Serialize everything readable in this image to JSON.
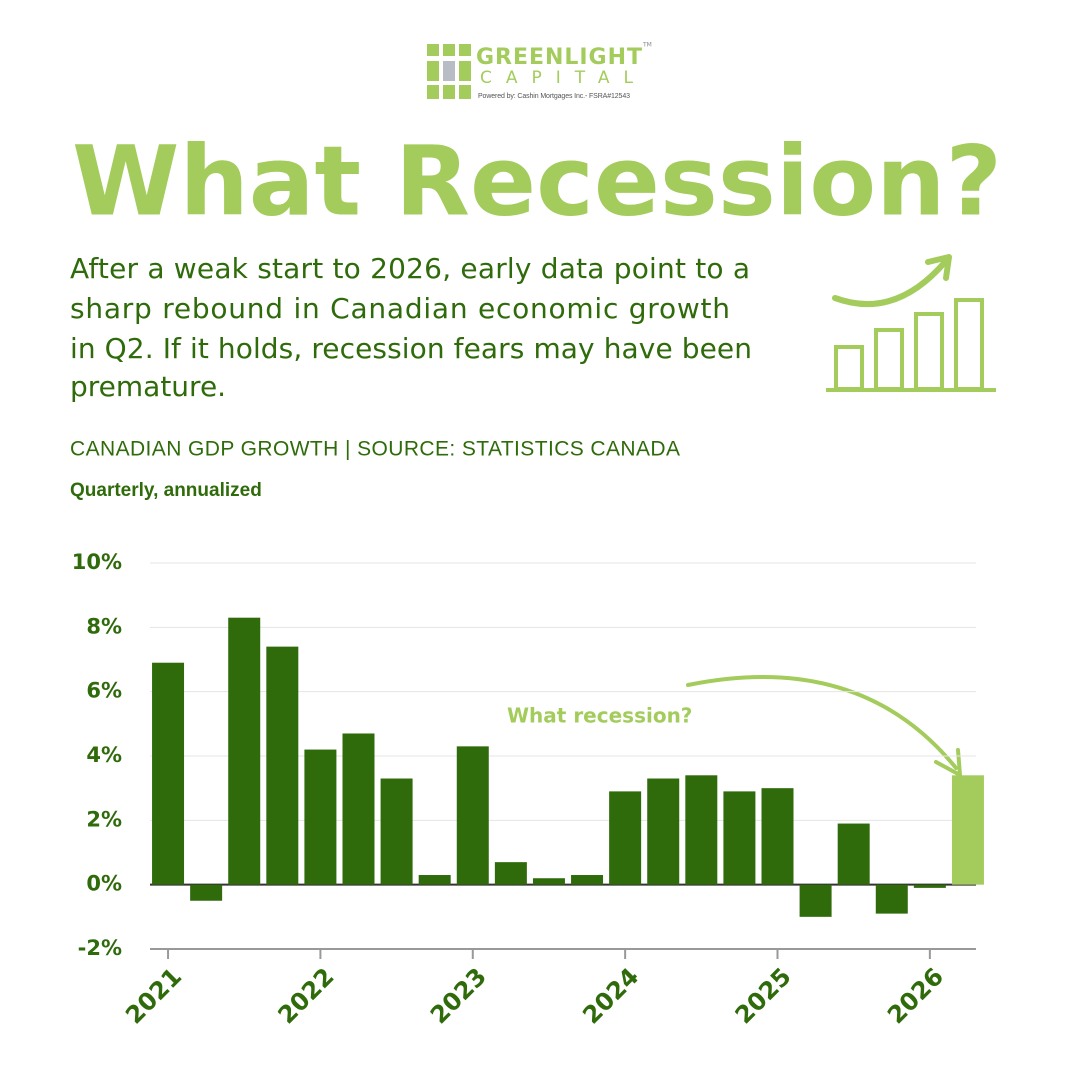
{
  "header": {
    "logo_name": "GREENLIGHT",
    "logo_sub": "CAPITAL",
    "trademark": "TM",
    "powered_by": "Powered by:  Cashin Mortgages Inc.- FSRA#12543"
  },
  "headline": "What Recession?",
  "intro_lines": [
    "After a weak start to 2026, early data point to a",
    "sharp rebound in Canadian economic growth",
    "in Q2. If it holds, recession fears may have been",
    "premature."
  ],
  "chart_data": {
    "type": "bar",
    "title": "CANADIAN GDP GROWTH | SOURCE: STATISTICS CANADA",
    "subtitle": "Quarterly, annualized",
    "annotation": "What recession?",
    "categories": [
      "2021",
      null,
      null,
      null,
      "2022",
      null,
      null,
      null,
      "2023",
      null,
      null,
      null,
      "2024",
      null,
      null,
      null,
      "2025",
      null,
      null,
      null,
      "2026",
      null
    ],
    "values": [
      6.9,
      -0.5,
      8.3,
      7.4,
      4.2,
      4.7,
      3.3,
      0.3,
      4.3,
      0.7,
      0.2,
      0.3,
      2.9,
      3.3,
      3.4,
      2.9,
      3.0,
      -1.0,
      1.9,
      -0.9,
      -0.1,
      3.4
    ],
    "colors": [
      "#2f6b0b",
      "#2f6b0b",
      "#2f6b0b",
      "#2f6b0b",
      "#2f6b0b",
      "#2f6b0b",
      "#2f6b0b",
      "#2f6b0b",
      "#2f6b0b",
      "#2f6b0b",
      "#2f6b0b",
      "#2f6b0b",
      "#2f6b0b",
      "#2f6b0b",
      "#2f6b0b",
      "#2f6b0b",
      "#2f6b0b",
      "#2f6b0b",
      "#2f6b0b",
      "#2f6b0b",
      "#2f6b0b",
      "#a3cc5c"
    ],
    "ylim": [
      -2,
      10
    ],
    "yticks": [
      {
        "value": -2,
        "label": "-2%"
      },
      {
        "value": 0,
        "label": "0%"
      },
      {
        "value": 2,
        "label": "2%"
      },
      {
        "value": 4,
        "label": "4%"
      },
      {
        "value": 6,
        "label": "6%"
      },
      {
        "value": 8,
        "label": "8%"
      },
      {
        "value": 10,
        "label": "10%"
      }
    ],
    "grid": true
  }
}
